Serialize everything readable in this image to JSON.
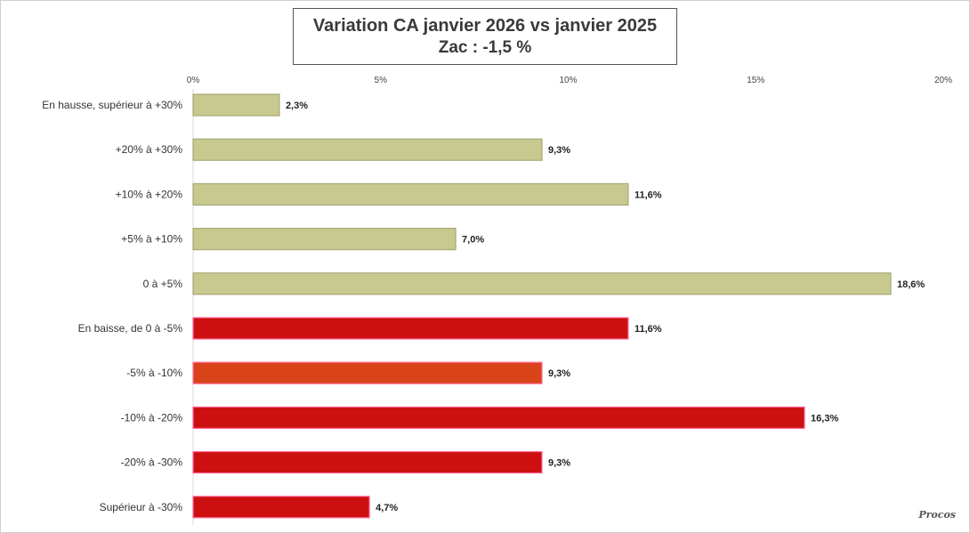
{
  "colors": {
    "hausse": "#c8c98f",
    "hausse_border": "#a8a878",
    "baisse": "#cc1010",
    "baisse_orange": "#d9431a",
    "baisse_border": "#ff6b9a"
  },
  "chart_data": {
    "type": "bar",
    "orientation": "horizontal",
    "title": "Variation CA janvier 2026 vs janvier 2025",
    "subtitle": "Zac : -1,5 %",
    "x_ticks": [
      "0%",
      "5%",
      "10%",
      "15%",
      "20%"
    ],
    "xlim": [
      0,
      20
    ],
    "grid": false,
    "categories": [
      "En hausse, supérieur à +30%",
      "+20% à +30%",
      "+10% à +20%",
      "+5% à +10%",
      "0 à +5%",
      "En baisse, de 0 à -5%",
      "-5% à -10%",
      "-10% à -20%",
      "-20% à -30%",
      "Supérieur à -30%"
    ],
    "values": [
      2.3,
      9.3,
      11.6,
      7.0,
      18.6,
      11.6,
      9.3,
      16.3,
      9.3,
      4.7
    ],
    "value_labels": [
      "2,3%",
      "9,3%",
      "11,6%",
      "7,0%",
      "18,6%",
      "11,6%",
      "9,3%",
      "16,3%",
      "9,3%",
      "4,7%"
    ],
    "bar_colors": [
      "hausse",
      "hausse",
      "hausse",
      "hausse",
      "hausse",
      "baisse",
      "baisse_orange",
      "baisse",
      "baisse",
      "baisse"
    ]
  }
}
